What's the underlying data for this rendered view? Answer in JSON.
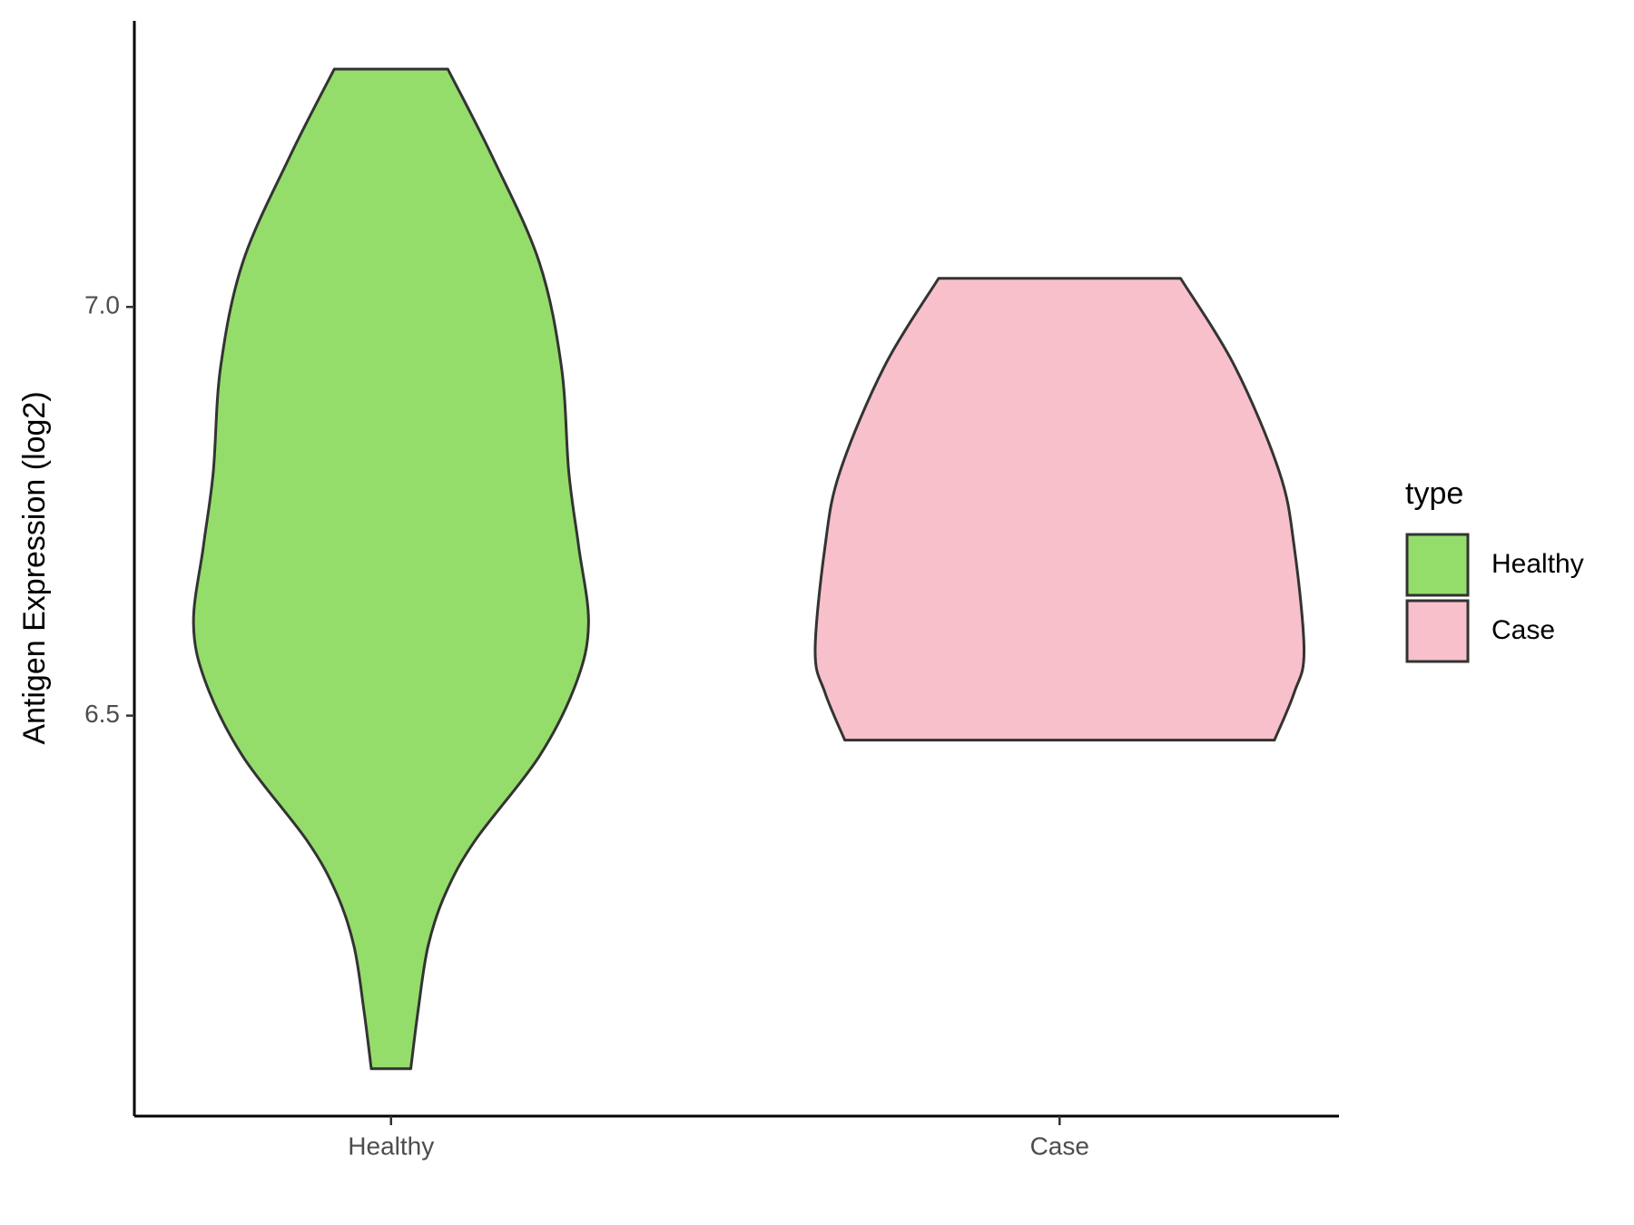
{
  "chart_data": {
    "type": "violin",
    "ylabel": "Antigen Expression (log2)",
    "categories": [
      "Healthy",
      "Case"
    ],
    "ylim": [
      6.01,
      7.35
    ],
    "yticks": [
      {
        "value": 6.5,
        "label": "6.5"
      },
      {
        "value": 7,
        "label": "7.0"
      }
    ],
    "legend_title": "type",
    "legend": "right",
    "series": [
      {
        "name": "Healthy",
        "color": "#94dd6b",
        "y": [
          7.291,
          7.184,
          7.055,
          6.927,
          6.798,
          6.707,
          6.613,
          6.54,
          6.45,
          6.347,
          6.282,
          6.218,
          6.14,
          6.068
        ],
        "widths": [
          0.23,
          0.41,
          0.6,
          0.69,
          0.72,
          0.76,
          0.8,
          0.75,
          0.6,
          0.34,
          0.22,
          0.15,
          0.11,
          0.08
        ]
      },
      {
        "name": "Case",
        "color": "#f7c0cb",
        "y": [
          7.035,
          6.927,
          6.798,
          6.707,
          6.579,
          6.528,
          6.47
        ],
        "widths": [
          0.49,
          0.71,
          0.89,
          0.95,
          0.99,
          0.95,
          0.87
        ]
      }
    ]
  }
}
